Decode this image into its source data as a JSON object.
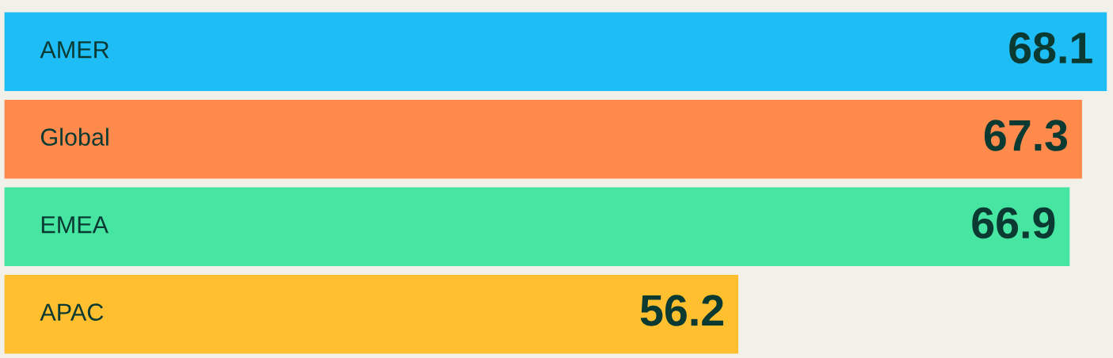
{
  "chart_data": {
    "type": "bar",
    "orientation": "horizontal",
    "categories": [
      "AMER",
      "Global",
      "EMEA",
      "APAC"
    ],
    "values": [
      68.1,
      67.3,
      66.9,
      56.2
    ],
    "colors": [
      "#1fbdf6",
      "#ff8a4c",
      "#46e5a2",
      "#ffbf2e"
    ],
    "xlim": [
      32.5,
      68.3
    ],
    "tick_labels": false,
    "data_labels": true,
    "grid": false,
    "legend": false
  }
}
